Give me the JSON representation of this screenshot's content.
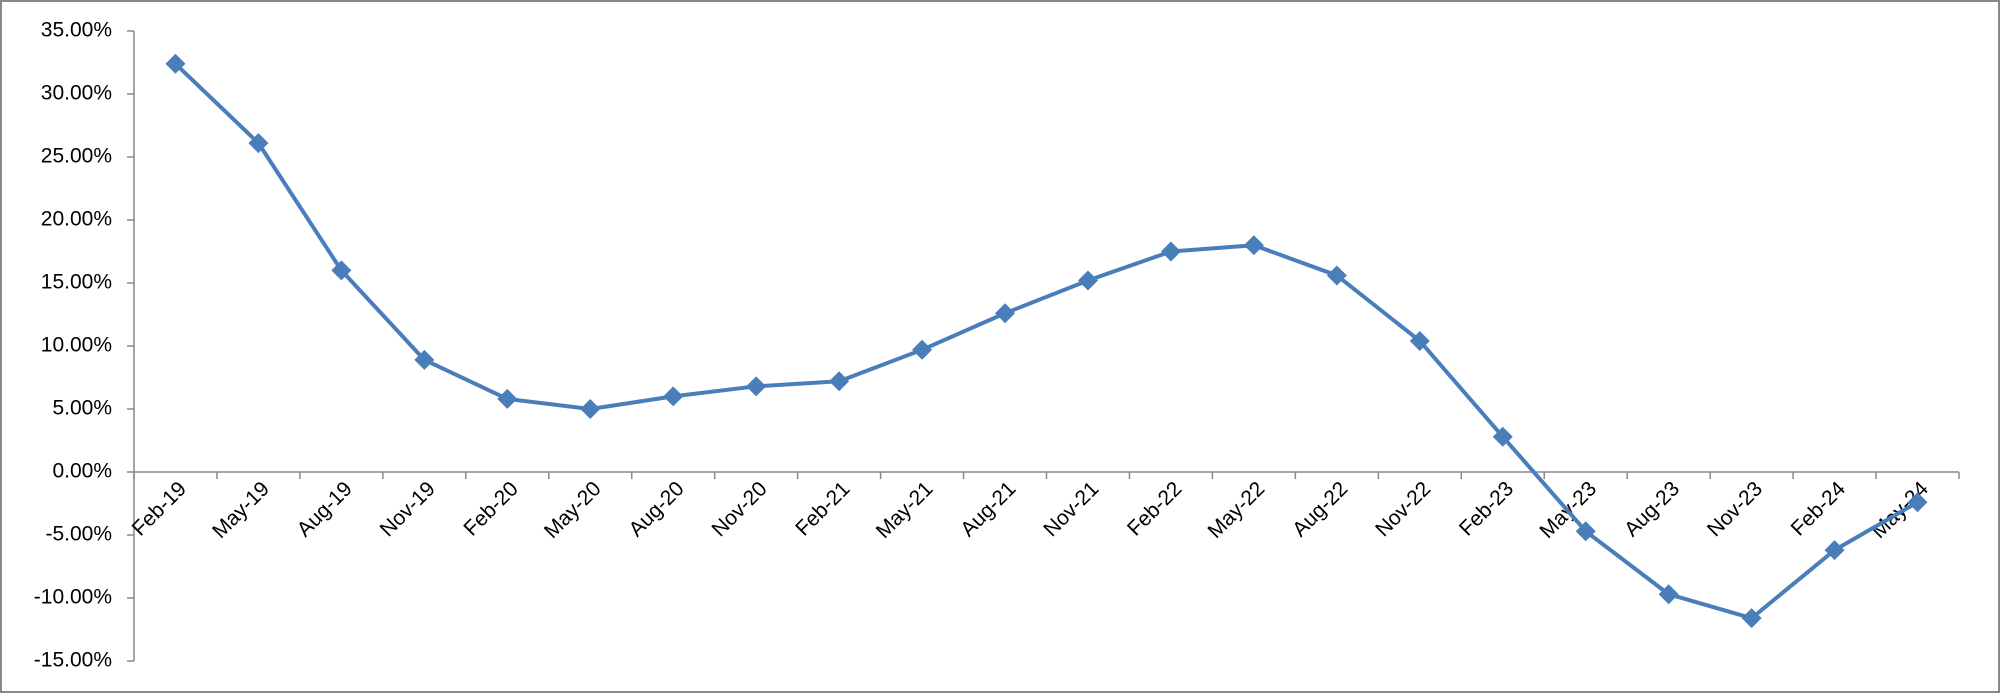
{
  "chart_data": {
    "type": "line",
    "categories": [
      "Feb-19",
      "May-19",
      "Aug-19",
      "Nov-19",
      "Feb-20",
      "May-20",
      "Aug-20",
      "Nov-20",
      "Feb-21",
      "May-21",
      "Aug-21",
      "Nov-21",
      "Feb-22",
      "May-22",
      "Aug-22",
      "Nov-22",
      "Feb-23",
      "May-23",
      "Aug-23",
      "Nov-23",
      "Feb-24",
      "May-24"
    ],
    "values": [
      32.4,
      26.1,
      16.0,
      8.9,
      5.8,
      5.0,
      6.0,
      6.8,
      7.2,
      9.7,
      12.6,
      15.2,
      17.5,
      18.0,
      15.6,
      10.4,
      2.8,
      -4.7,
      -9.7,
      -11.6,
      -6.2,
      -2.4
    ],
    "color": "#4a7ebb",
    "ylim": [
      -15,
      35
    ],
    "yticks": [
      {
        "value": -15,
        "label": "-15.00%"
      },
      {
        "value": -10,
        "label": "-10.00%"
      },
      {
        "value": -5,
        "label": "-5.00%"
      },
      {
        "value": 0,
        "label": "0.00%"
      },
      {
        "value": 5,
        "label": "5.00%"
      },
      {
        "value": 10,
        "label": "10.00%"
      },
      {
        "value": 15,
        "label": "15.00%"
      },
      {
        "value": 20,
        "label": "20.00%"
      },
      {
        "value": 25,
        "label": "25.00%"
      },
      {
        "value": 30,
        "label": "30.00%"
      },
      {
        "value": 35,
        "label": "35.00%"
      }
    ],
    "grid": false
  }
}
